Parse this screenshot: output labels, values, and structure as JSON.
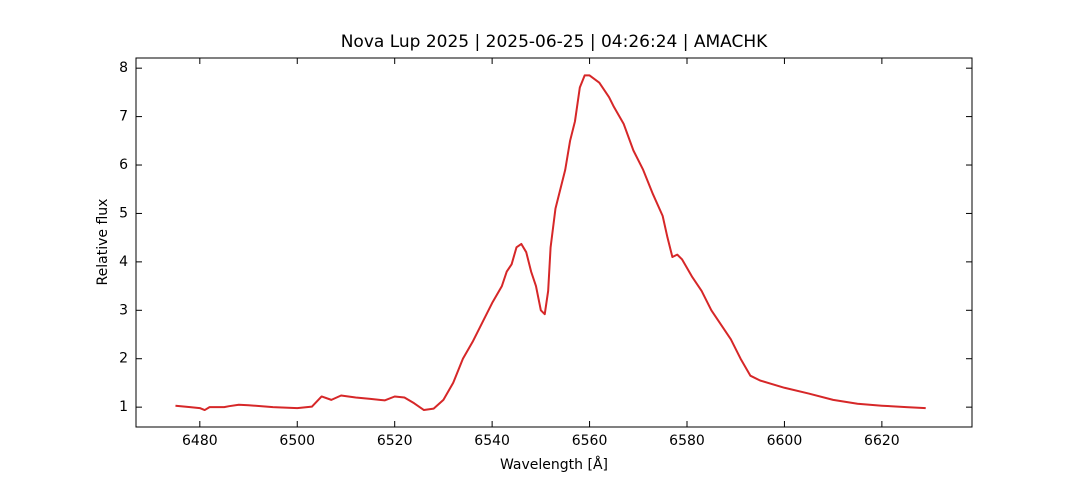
{
  "chart_data": {
    "type": "line",
    "title": "Nova Lup 2025 | 2025-06-25 | 04:26:24 | AMACHK",
    "x_label": "Wavelength [Å]",
    "y_label": "Relative flux",
    "xlim": [
      6466.9,
      6638.5
    ],
    "ylim": [
      0.59,
      8.21
    ],
    "xticks": [
      6480,
      6500,
      6520,
      6540,
      6560,
      6580,
      6600,
      6620
    ],
    "yticks": [
      1,
      2,
      3,
      4,
      5,
      6,
      7,
      8
    ],
    "series": [
      {
        "name": "Nova Lup 2025",
        "color": "#d62728",
        "x": [
          6475,
          6478,
          6480,
          6481,
          6482,
          6485,
          6486,
          6488,
          6490,
          6495,
          6500,
          6503,
          6505,
          6507,
          6509,
          6512,
          6515,
          6518,
          6520,
          6522,
          6524,
          6526,
          6528,
          6530,
          6532,
          6534,
          6536,
          6538,
          6540,
          6542,
          6543,
          6544,
          6545,
          6546,
          6547,
          6548,
          6549,
          6550,
          6550.8,
          6551.5,
          6552,
          6553,
          6555,
          6556,
          6557,
          6558,
          6559,
          6560,
          6562,
          6564,
          6565,
          6567,
          6569,
          6571,
          6573,
          6575,
          6576,
          6577,
          6578,
          6579,
          6581,
          6583,
          6585,
          6587,
          6589,
          6591,
          6593,
          6595,
          6600,
          6605,
          6610,
          6615,
          6620,
          6625,
          6629
        ],
        "values": [
          1.03,
          1.0,
          0.98,
          0.94,
          1.0,
          1.0,
          1.02,
          1.05,
          1.04,
          1.0,
          0.98,
          1.01,
          1.22,
          1.15,
          1.24,
          1.2,
          1.17,
          1.14,
          1.22,
          1.2,
          1.08,
          0.94,
          0.97,
          1.15,
          1.5,
          2.0,
          2.35,
          2.75,
          3.15,
          3.5,
          3.8,
          3.95,
          4.3,
          4.37,
          4.2,
          3.8,
          3.5,
          3.0,
          2.92,
          3.4,
          4.3,
          5.1,
          5.9,
          6.5,
          6.9,
          7.6,
          7.85,
          7.85,
          7.7,
          7.4,
          7.2,
          6.85,
          6.3,
          5.9,
          5.4,
          4.95,
          4.5,
          4.1,
          4.15,
          4.05,
          3.7,
          3.4,
          3.0,
          2.7,
          2.4,
          2.0,
          1.65,
          1.55,
          1.4,
          1.28,
          1.15,
          1.07,
          1.03,
          1.0,
          0.98
        ]
      }
    ]
  }
}
